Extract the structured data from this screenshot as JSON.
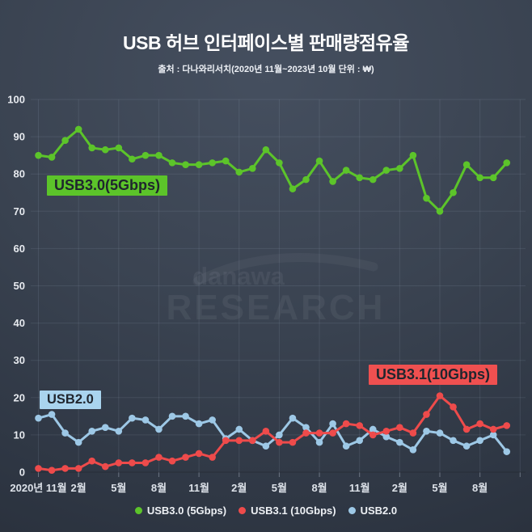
{
  "page": {
    "title": "USB 허브 인터페이스별 판매량점유율",
    "subtitle": "출처 : 다나와리서치(2020년 11월~2023년 10월 단위 : ₩)"
  },
  "watermark": {
    "line1": "danawa",
    "line2": "RESEARCH"
  },
  "legend": [
    {
      "label": "USB3.0 (5Gbps)",
      "color": "#5cc42a"
    },
    {
      "label": "USB3.1 (10Gbps)",
      "color": "#ee4b4b"
    },
    {
      "label": "USB2.0",
      "color": "#9dc8e6"
    }
  ],
  "chart_data": {
    "type": "line",
    "title": "USB 허브 인터페이스별 판매량점유율",
    "source": "출처 : 다나와리서치(2020년 11월~2023년 10월 단위 : ₩)",
    "ylim": [
      0,
      100
    ],
    "y_ticks": [
      0,
      10,
      20,
      30,
      40,
      50,
      60,
      70,
      80,
      90,
      100
    ],
    "grid": true,
    "n_points": 36,
    "tick_interval": 3,
    "x_tick_labels": [
      "2020년 11월",
      "2월",
      "5월",
      "8월",
      "11월",
      "2월",
      "5월",
      "8월",
      "11월",
      "2월",
      "5월",
      "8월"
    ],
    "legend_position": "bottom",
    "series": [
      {
        "key": "usb30",
        "name": "USB3.0 (5Gbps)",
        "annotation": "USB3.0(5Gbps)",
        "color": "#5cc42a",
        "values": [
          85,
          84.5,
          89,
          92,
          87,
          86.5,
          87,
          84,
          85,
          85,
          83,
          82.5,
          82.5,
          83,
          83.5,
          80.5,
          81.5,
          86.5,
          83,
          76,
          78.5,
          83.5,
          78,
          81,
          79,
          78.5,
          81,
          81.5,
          85,
          73.5,
          70,
          75,
          82.5,
          79,
          79,
          83
        ]
      },
      {
        "key": "usb31",
        "name": "USB3.1 (10Gbps)",
        "annotation": "USB3.1(10Gbps)",
        "color": "#ee4b4b",
        "values": [
          1,
          0.5,
          1,
          1,
          3,
          1.5,
          2.5,
          2.5,
          2.5,
          4,
          3,
          4,
          5,
          4,
          8.5,
          8.5,
          8.5,
          11,
          8,
          8,
          10.5,
          10.5,
          10.5,
          13,
          12.5,
          10,
          11,
          12,
          10.5,
          15.5,
          20.5,
          17.5,
          11.5,
          13,
          11.5,
          12.5
        ]
      },
      {
        "key": "usb20",
        "name": "USB2.0",
        "annotation": "USB2.0",
        "color": "#9dc8e6",
        "values": [
          14.5,
          15.5,
          10.5,
          8,
          11,
          12,
          11,
          14.5,
          14,
          11.5,
          15,
          15,
          13,
          14,
          9,
          11.5,
          8.5,
          7,
          10,
          14.5,
          12,
          8,
          13,
          7,
          8.5,
          11.5,
          9.5,
          8,
          6,
          11,
          10.5,
          8.5,
          7,
          8.5,
          10,
          5.5
        ]
      }
    ]
  }
}
